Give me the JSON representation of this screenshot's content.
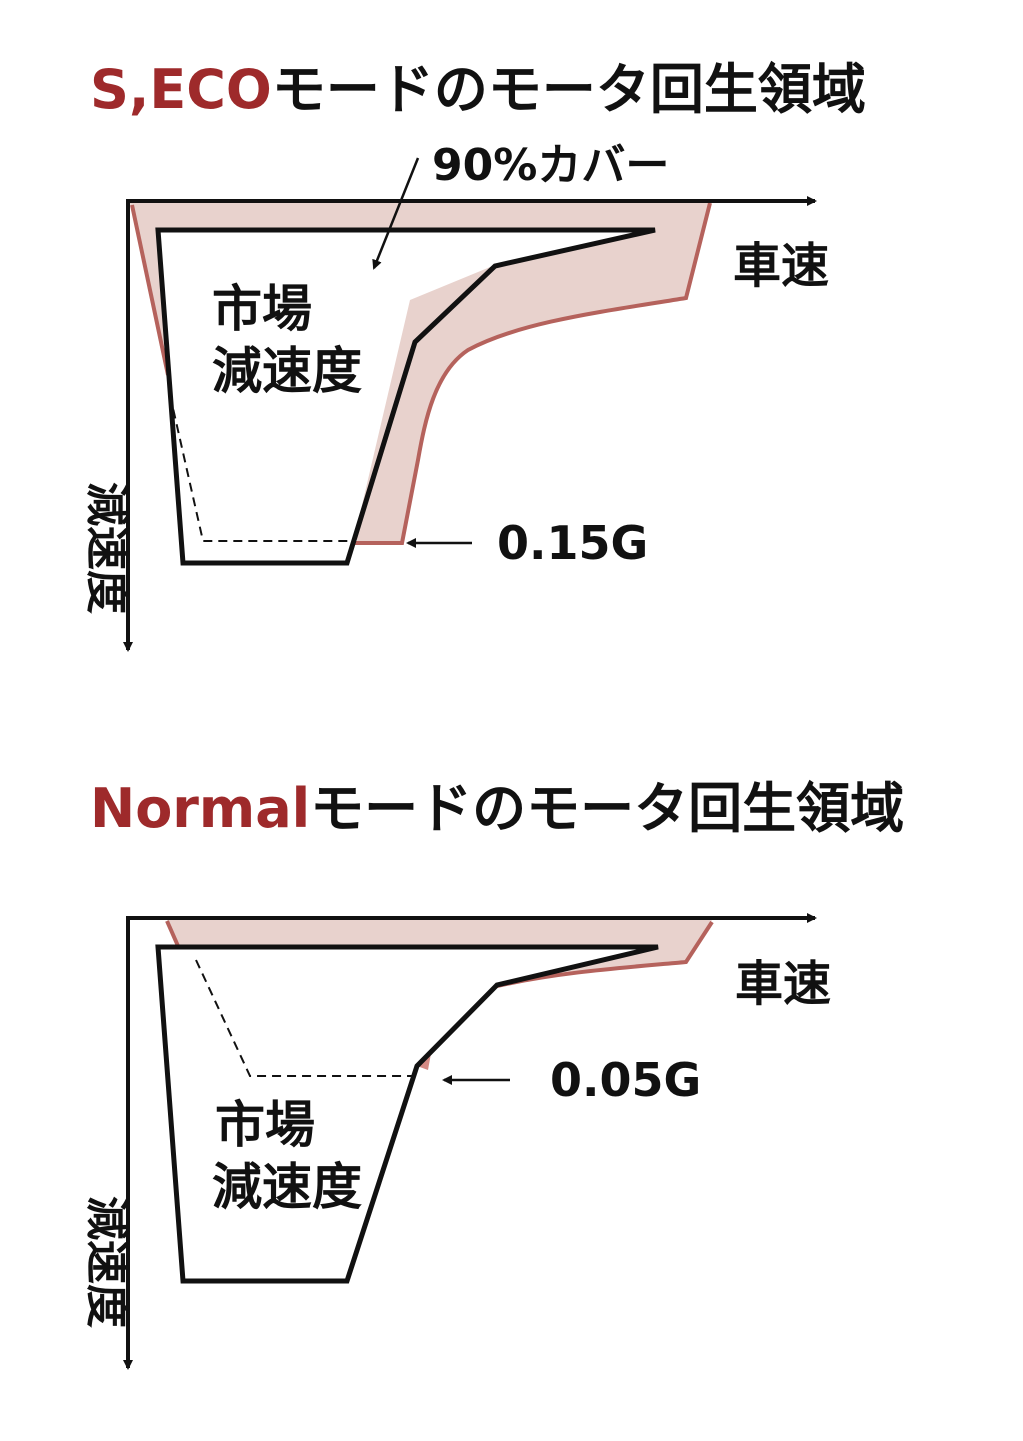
{
  "colors": {
    "accent": "#9e2a2b",
    "region_fill": "#e8d2cd",
    "region_stroke": "#b5625c",
    "line": "#111111"
  },
  "diagrams": [
    {
      "title_accent": "S,ECO",
      "title_rest": "モードのモータ回生領域",
      "coverage_label": "90%カバー",
      "x_axis_label": "車速",
      "y_axis_label": "減速度",
      "market_label_line1": "市場",
      "market_label_line2": "減速度",
      "threshold_label": "0.15G"
    },
    {
      "title_accent": "Normal",
      "title_rest": "モードのモータ回生領域",
      "x_axis_label": "車速",
      "y_axis_label": "減速度",
      "market_label_line1": "市場",
      "market_label_line2": "減速度",
      "threshold_label": "0.05G"
    }
  ]
}
